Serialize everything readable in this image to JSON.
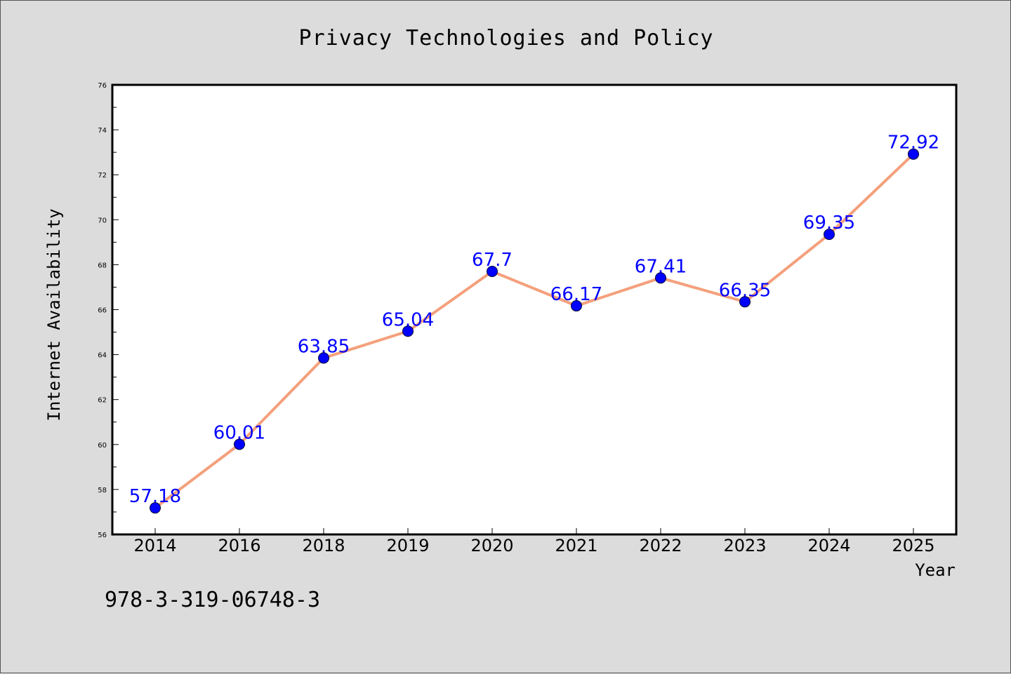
{
  "chart_data": {
    "type": "line",
    "title": "Privacy Technologies and Policy",
    "xlabel": "Year",
    "ylabel": "Internet Availability",
    "categories": [
      "2014",
      "2016",
      "2018",
      "2019",
      "2020",
      "2021",
      "2022",
      "2023",
      "2024",
      "2025"
    ],
    "series": [
      {
        "values": [
          57.18,
          60.01,
          63.85,
          65.04,
          67.7,
          66.17,
          67.41,
          66.35,
          69.35,
          72.92
        ],
        "line_color": "#f4a07c",
        "marker_color": "#0000ff"
      }
    ],
    "ylim": [
      56,
      76
    ],
    "yticks": [
      56,
      58,
      60,
      62,
      64,
      66,
      68,
      70,
      72,
      74,
      76
    ],
    "data_labels": [
      "57.18",
      "60.01",
      "63.85",
      "65.04",
      "67.7",
      "66.17",
      "67.41",
      "66.35",
      "69.35",
      "72.92"
    ],
    "grid": false,
    "legend": "none"
  },
  "annotation": "978-3-319-06748-3"
}
